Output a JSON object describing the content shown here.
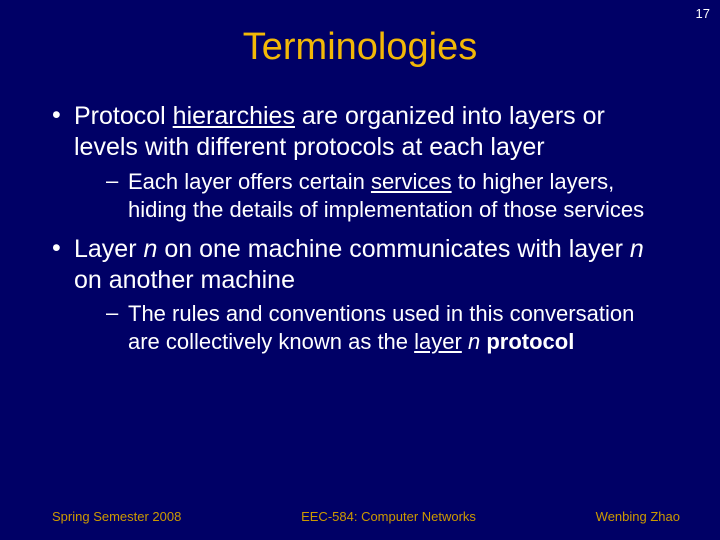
{
  "colors": {
    "background": "#000066",
    "title": "#f2b807",
    "body": "#ffffff",
    "footer": "#cc9900",
    "slide_number": "#ffffff"
  },
  "typography": {
    "title_fontsize": 38,
    "bullet1_fontsize": 25,
    "bullet2_fontsize": 22,
    "footer_fontsize": 13,
    "slide_number_fontsize": 13
  },
  "slide_number": "17",
  "title": "Terminologies",
  "bullets": [
    {
      "pre": "Protocol ",
      "u1": "hierarchies",
      "post": " are organized into layers or levels with different protocols at each layer",
      "sub": [
        {
          "pre": "Each layer offers certain ",
          "u1": "services",
          "post": " to higher layers, hiding the details of implementation of those services"
        }
      ]
    },
    {
      "pre": "Layer ",
      "i1": "n",
      "mid": " on one machine communicates with layer ",
      "i2": "n",
      "post": " on another machine",
      "sub": [
        {
          "pre": "The rules and conventions used in this conversation are collectively known as the ",
          "u1": "layer",
          "space": " ",
          "i1": "n",
          "space2": " ",
          "b1": "protocol"
        }
      ]
    }
  ],
  "footer": {
    "left": "Spring Semester 2008",
    "center": "EEC-584: Computer Networks",
    "right": "Wenbing Zhao"
  }
}
